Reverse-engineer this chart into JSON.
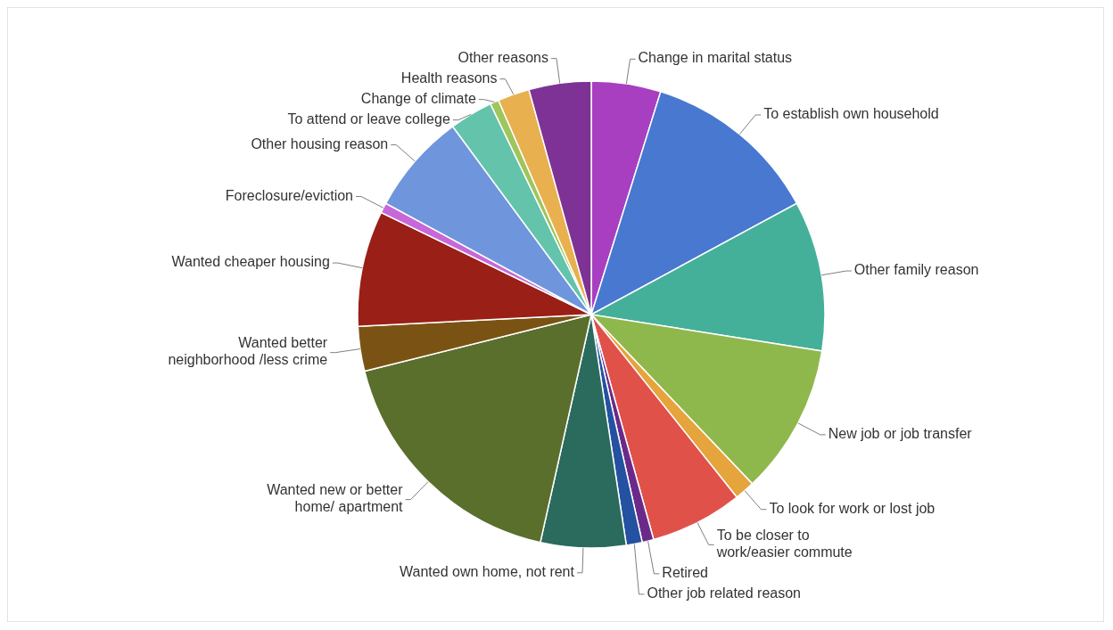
{
  "chart_data": {
    "type": "pie",
    "categories": [
      "Change in marital status",
      "To establish own household",
      "Other family reason",
      "New job or job transfer",
      "To look for work or lost job",
      "To be closer to work/easier commute",
      "Retired",
      "Other job related reason",
      "Wanted own home, not rent",
      "Wanted new or better home/ apartment",
      "Wanted better neighborhood /less crime",
      "Wanted cheaper housing",
      "Foreclosure/eviction",
      "Other housing reason",
      "To attend or leave college",
      "Change of climate",
      "Health reasons",
      "Other reasons"
    ],
    "values": [
      4.8,
      12.3,
      10.4,
      10.4,
      1.4,
      6.4,
      0.8,
      1.1,
      5.9,
      17.6,
      3.1,
      8.0,
      0.7,
      7.0,
      3.0,
      0.6,
      2.2,
      4.3
    ],
    "colors": [
      "#a83fc1",
      "#4878d0",
      "#45b09a",
      "#8fb84c",
      "#e5a43c",
      "#e0514a",
      "#6b2a8a",
      "#2451a0",
      "#2a6b5e",
      "#5a6f2c",
      "#7a5314",
      "#9a1f16",
      "#c868d8",
      "#6f96dc",
      "#63c4ab",
      "#9fc55c",
      "#e8b04e",
      "#7f3295"
    ]
  }
}
